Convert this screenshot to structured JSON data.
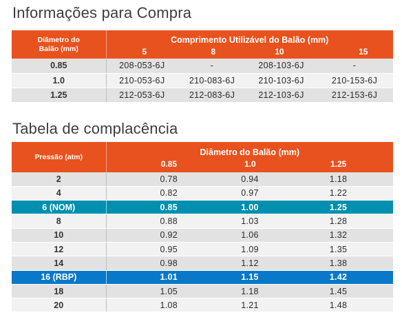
{
  "purchase": {
    "title": "Informações para Compra",
    "diameter_header": "Diâmetro do Balão (mm)",
    "length_header": "Comprimento Utilizável do Balão (mm)",
    "lengths": [
      "5",
      "8",
      "10",
      "15"
    ],
    "rows": [
      {
        "diameter": "0.85",
        "codes": [
          "208-053-6J",
          "-",
          "208-103-6J",
          "-"
        ]
      },
      {
        "diameter": "1.0",
        "codes": [
          "210-053-6J",
          "210-083-6J",
          "210-103-6J",
          "210-153-6J"
        ]
      },
      {
        "diameter": "1.25",
        "codes": [
          "212-053-6J",
          "212-083-6J",
          "212-103-6J",
          "212-153-6J"
        ]
      }
    ]
  },
  "compliance": {
    "title": "Tabela de complacência",
    "pressure_header": "Pressão (atm)",
    "diameter_header": "Diâmetro do Balão (mm)",
    "diameters": [
      "0.85",
      "1.0",
      "1.25"
    ],
    "rows": [
      {
        "pressure": "2",
        "values": [
          "0.78",
          "0.94",
          "1.18"
        ]
      },
      {
        "pressure": "4",
        "values": [
          "0.82",
          "0.97",
          "1.22"
        ]
      },
      {
        "pressure": "6 (NOM)",
        "values": [
          "0.85",
          "1.00",
          "1.25"
        ],
        "highlight": "nom"
      },
      {
        "pressure": "8",
        "values": [
          "0.88",
          "1.03",
          "1.28"
        ]
      },
      {
        "pressure": "10",
        "values": [
          "0.92",
          "1.06",
          "1.32"
        ]
      },
      {
        "pressure": "12",
        "values": [
          "0.95",
          "1.09",
          "1.35"
        ]
      },
      {
        "pressure": "14",
        "values": [
          "0.98",
          "1.12",
          "1.38"
        ]
      },
      {
        "pressure": "16 (RBP)",
        "values": [
          "1.01",
          "1.15",
          "1.42"
        ],
        "highlight": "rbp"
      },
      {
        "pressure": "18",
        "values": [
          "1.05",
          "1.18",
          "1.45"
        ]
      },
      {
        "pressure": "20",
        "values": [
          "1.08",
          "1.21",
          "1.48"
        ]
      }
    ]
  },
  "colors": {
    "header_orange": "#e8521e",
    "nominal_teal": "#008fae",
    "rbp_blue": "#0a78c8"
  }
}
